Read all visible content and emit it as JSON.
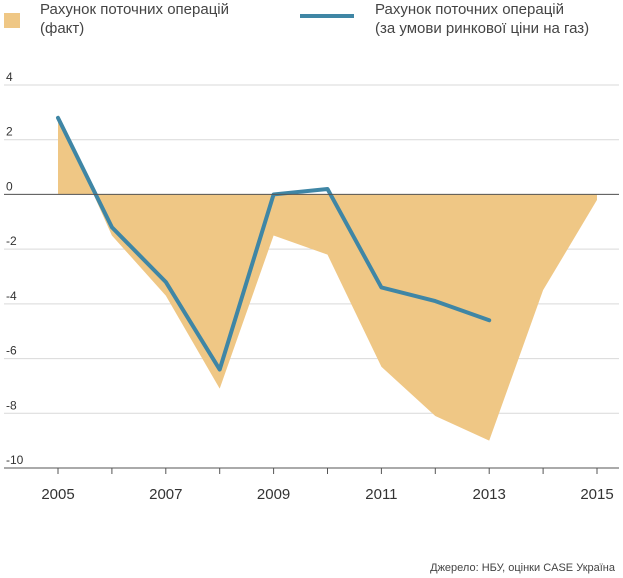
{
  "legend": {
    "area_line1": "Рахунок поточних операцій",
    "area_line2": "(факт)",
    "line_line1": "Рахунок поточних операцій",
    "line_line2": "(за умови ринкової ціни на газ)"
  },
  "source": "Джерело: НБУ, оцінки CASE Україна",
  "colors": {
    "area": "#efc785",
    "line": "#3f86a5",
    "grid": "#d9d9d9",
    "axis": "#555555"
  },
  "chart_data": {
    "type": "area",
    "x_ticks": [
      "2005",
      "2007",
      "2009",
      "2011",
      "2013",
      "2015"
    ],
    "y_ticks": [
      "4",
      "2",
      "0",
      "-2",
      "-4",
      "-6",
      "-8",
      "-10"
    ],
    "ylim": [
      -10,
      4
    ],
    "xlim": [
      2005,
      2015
    ],
    "grid": "horizontal",
    "legend_position": "top",
    "series": [
      {
        "name": "Рахунок поточних операцій (факт)",
        "type": "area",
        "x": [
          2005,
          2006,
          2007,
          2008,
          2009,
          2010,
          2011,
          2012,
          2013,
          2014,
          2015
        ],
        "values": [
          2.9,
          -1.5,
          -3.7,
          -7.1,
          -1.5,
          -2.2,
          -6.3,
          -8.1,
          -9.0,
          -3.5,
          -0.2
        ]
      },
      {
        "name": "Рахунок поточних операцій (за умови ринкової ціни на газ)",
        "type": "line",
        "x": [
          2005,
          2006,
          2007,
          2008,
          2009,
          2010,
          2011,
          2012,
          2013
        ],
        "values": [
          2.8,
          -1.2,
          -3.2,
          -6.4,
          0.0,
          0.2,
          -3.4,
          -3.9,
          -4.6
        ]
      }
    ]
  }
}
